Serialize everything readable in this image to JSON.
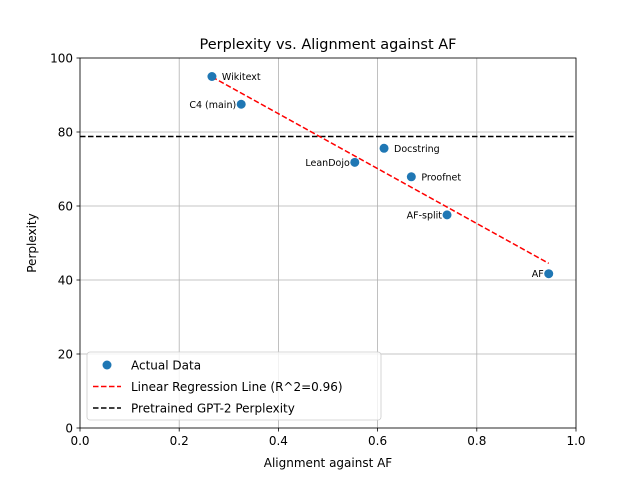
{
  "chart_data": {
    "type": "scatter",
    "title": "Perplexity vs. Alignment against AF",
    "xlabel": "Alignment against AF",
    "ylabel": "Perplexity",
    "xlim": [
      0.0,
      1.0
    ],
    "ylim": [
      0,
      100
    ],
    "xticks": [
      0.0,
      0.2,
      0.4,
      0.6,
      0.8,
      1.0
    ],
    "xtick_labels": [
      "0.0",
      "0.2",
      "0.4",
      "0.6",
      "0.8",
      "1.0"
    ],
    "yticks": [
      0,
      20,
      40,
      60,
      80,
      100
    ],
    "ytick_labels": [
      "0",
      "20",
      "40",
      "60",
      "80",
      "100"
    ],
    "grid": true,
    "points": [
      {
        "label": "Wikitext",
        "x": 0.266,
        "y": 95.0,
        "label_side": "right"
      },
      {
        "label": "C4 (main)",
        "x": 0.325,
        "y": 87.5,
        "label_side": "left"
      },
      {
        "label": "LeanDojo",
        "x": 0.554,
        "y": 71.8,
        "label_side": "left"
      },
      {
        "label": "Docstring",
        "x": 0.613,
        "y": 75.6,
        "label_side": "right"
      },
      {
        "label": "Proofnet",
        "x": 0.668,
        "y": 67.9,
        "label_side": "right"
      },
      {
        "label": "AF-split",
        "x": 0.74,
        "y": 57.6,
        "label_side": "left"
      },
      {
        "label": "AF",
        "x": 0.945,
        "y": 41.7,
        "label_side": "left"
      }
    ],
    "regression_line": {
      "x": [
        0.266,
        0.945
      ],
      "y": [
        94.9,
        44.5
      ],
      "r2": 0.96
    },
    "baseline": {
      "y": 78.8
    },
    "legend": {
      "position": "lower-left",
      "entries": [
        {
          "label": "Actual Data",
          "kind": "marker",
          "color": "#1f77b4"
        },
        {
          "label": "Linear Regression Line (R^2=0.96)",
          "kind": "dashed",
          "color": "#ff0000"
        },
        {
          "label": "Pretrained GPT-2 Perplexity",
          "kind": "dashed",
          "color": "#000000"
        }
      ]
    },
    "colors": {
      "points": "#1f77b4",
      "regression": "#ff0000",
      "baseline": "#000000",
      "grid": "#b0b0b0"
    }
  }
}
